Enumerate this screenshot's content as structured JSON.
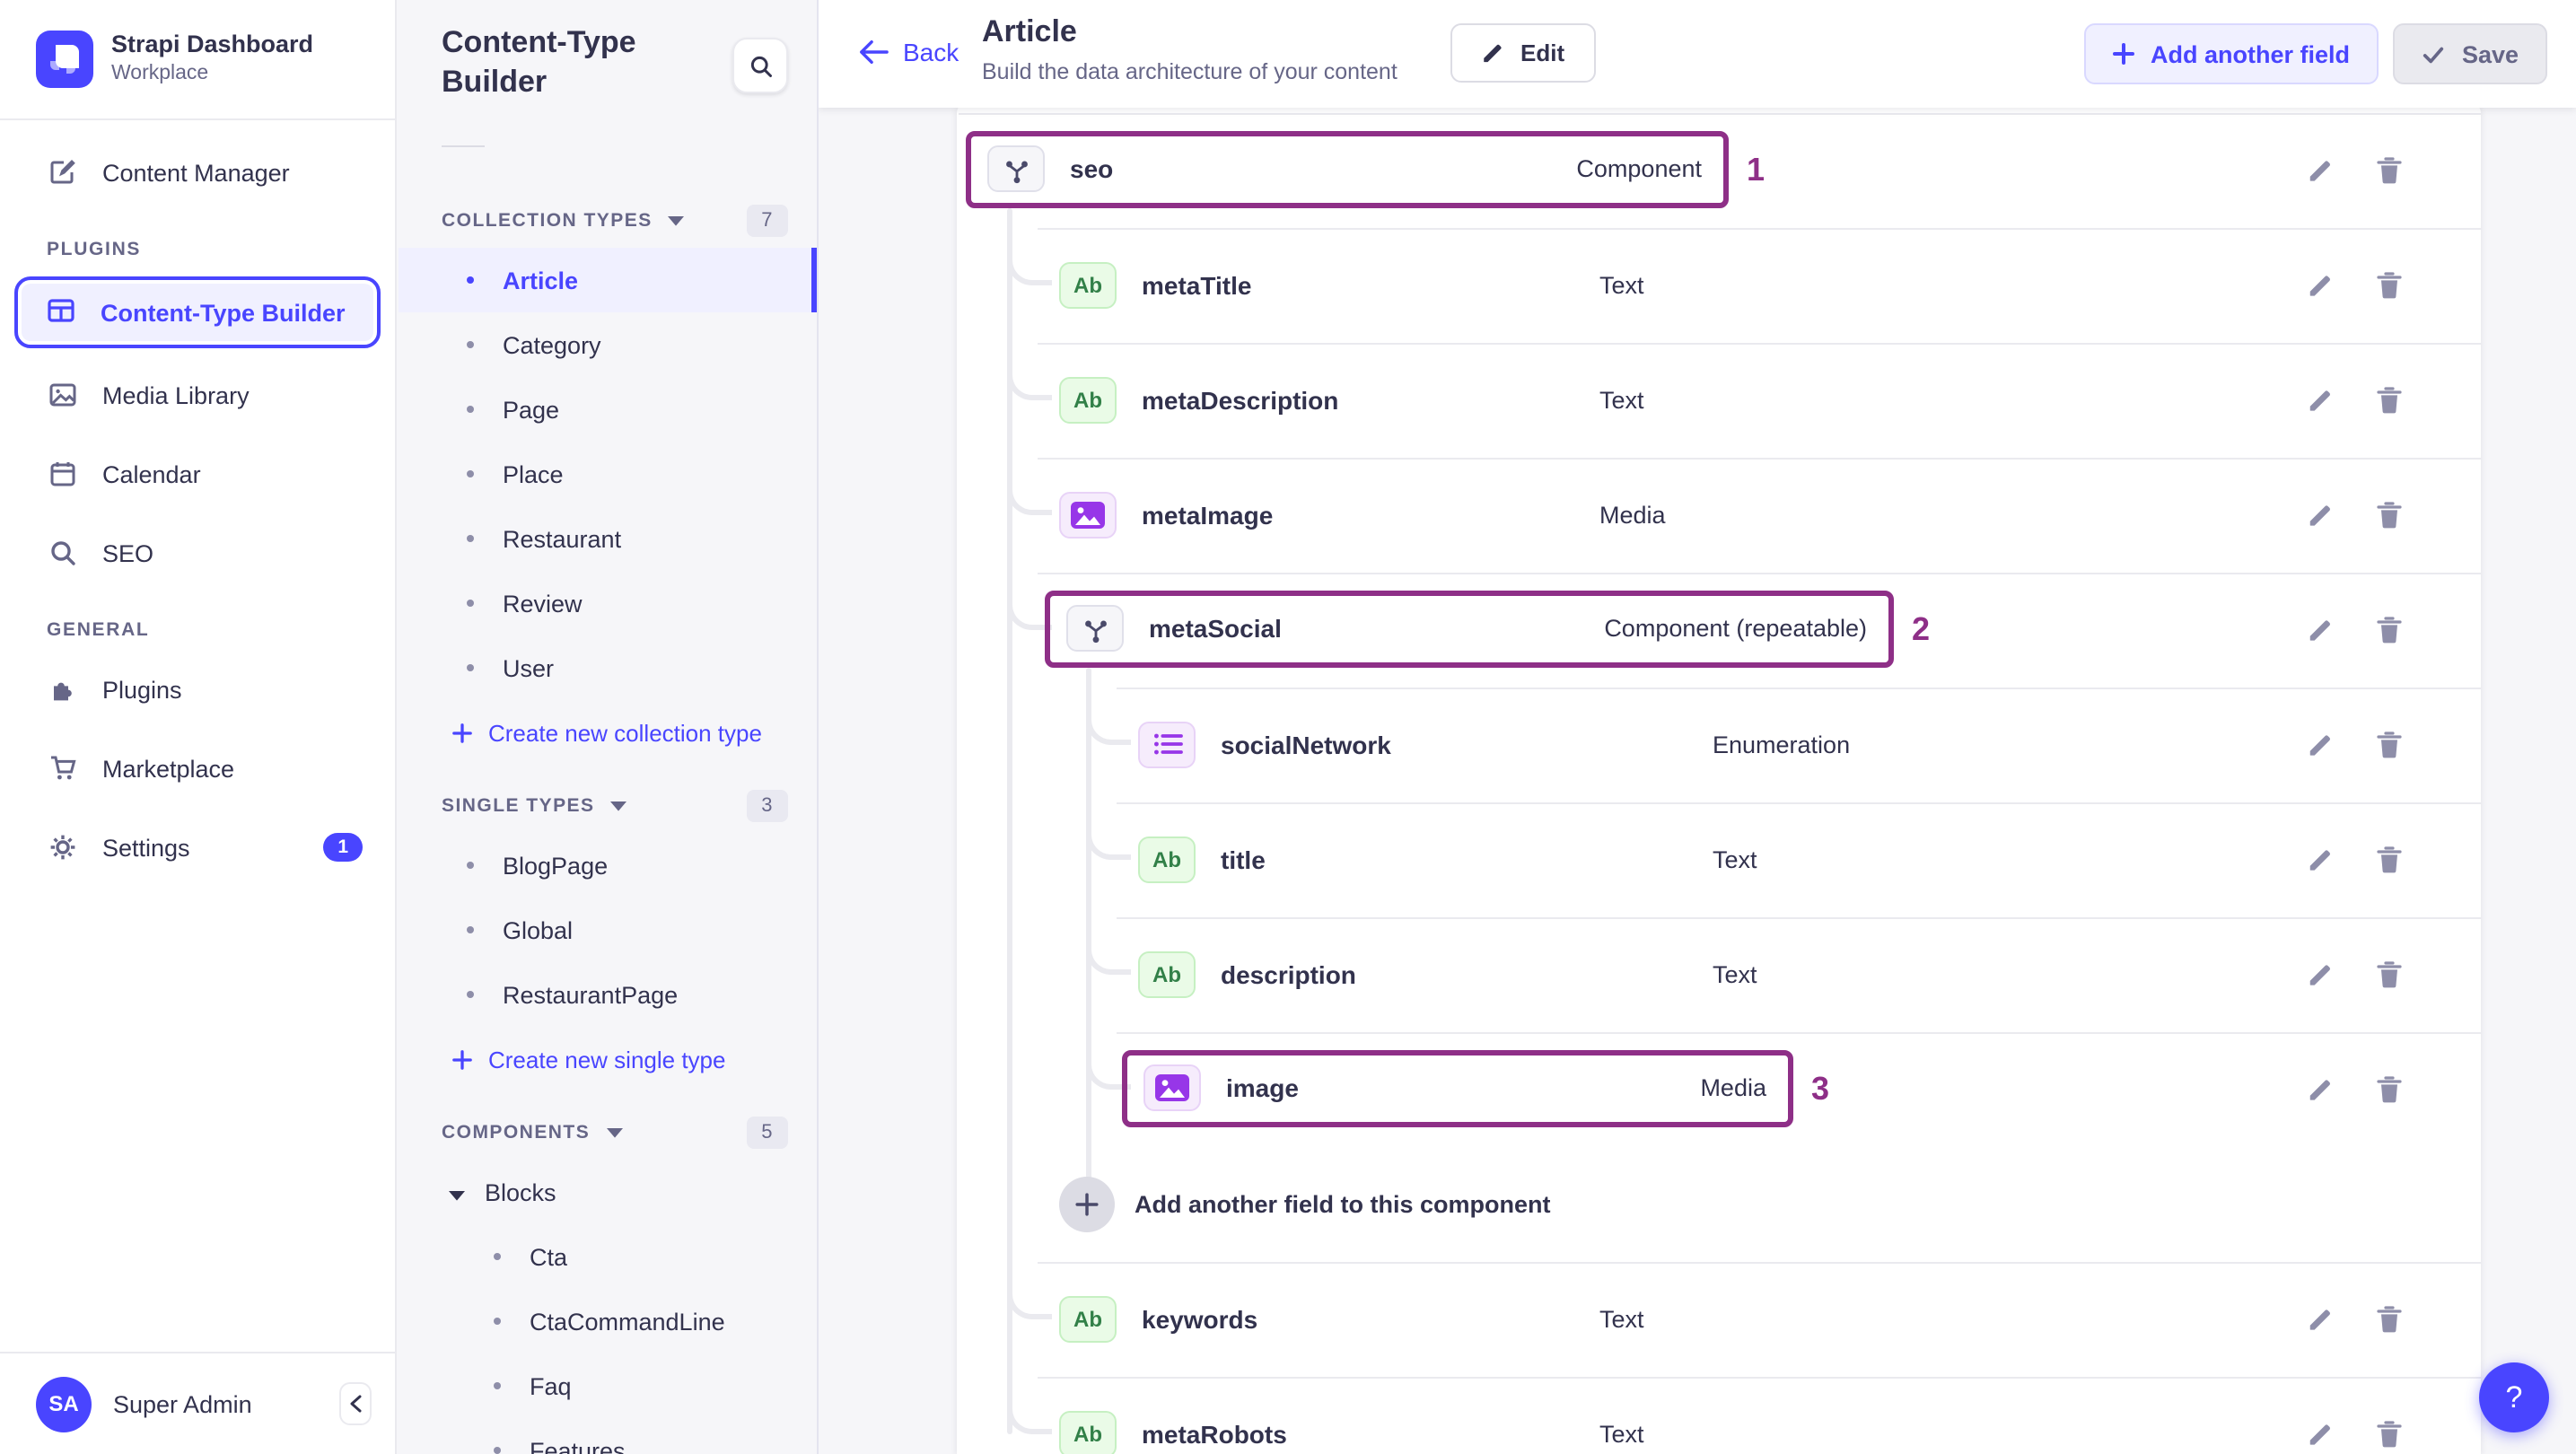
{
  "app": {
    "title": "Strapi Dashboard",
    "workspace": "Workplace",
    "user_initials": "SA",
    "user_name": "Super Admin",
    "help_label": "?"
  },
  "colors": {
    "primary": "#4945ff",
    "primary_bg": "#f0f0ff",
    "annotation": "#8e2f87",
    "text": "#32324d",
    "muted": "#666687",
    "divider": "#eaeaef",
    "page_bg": "#f6f6f9",
    "text_icon_green": "#328048",
    "purple_icon": "#9736e8"
  },
  "nav": {
    "top_items": [
      {
        "label": "Content Manager",
        "icon": "pen-icon",
        "active": false
      }
    ],
    "sections": [
      {
        "title": "PLUGINS",
        "items": [
          {
            "label": "Content-Type Builder",
            "icon": "layout-icon",
            "active": true
          },
          {
            "label": "Media Library",
            "icon": "picture-icon",
            "active": false
          },
          {
            "label": "Calendar",
            "icon": "calendar-icon",
            "active": false
          },
          {
            "label": "SEO",
            "icon": "search-icon",
            "active": false
          }
        ]
      },
      {
        "title": "GENERAL",
        "items": [
          {
            "label": "Plugins",
            "icon": "puzzle-icon",
            "active": false
          },
          {
            "label": "Marketplace",
            "icon": "cart-icon",
            "active": false
          },
          {
            "label": "Settings",
            "icon": "gear-icon",
            "active": false,
            "badge": "1"
          }
        ]
      }
    ]
  },
  "panel": {
    "title": "Content-Type Builder",
    "sections": [
      {
        "title": "COLLECTION TYPES",
        "count": "7",
        "items": [
          {
            "label": "Article",
            "active": true
          },
          {
            "label": "Category",
            "active": false
          },
          {
            "label": "Page",
            "active": false
          },
          {
            "label": "Place",
            "active": false
          },
          {
            "label": "Restaurant",
            "active": false
          },
          {
            "label": "Review",
            "active": false
          },
          {
            "label": "User",
            "active": false
          }
        ],
        "action": "Create new collection type"
      },
      {
        "title": "SINGLE TYPES",
        "count": "3",
        "items": [
          {
            "label": "BlogPage",
            "active": false
          },
          {
            "label": "Global",
            "active": false
          },
          {
            "label": "RestaurantPage",
            "active": false
          }
        ],
        "action": "Create new single type"
      },
      {
        "title": "COMPONENTS",
        "count": "5",
        "groups": [
          {
            "label": "Blocks",
            "expanded": true,
            "items": [
              {
                "label": "Cta"
              },
              {
                "label": "CtaCommandLine"
              },
              {
                "label": "Faq"
              },
              {
                "label": "Features"
              }
            ]
          }
        ]
      }
    ]
  },
  "header": {
    "back_label": "Back",
    "title": "Article",
    "subtitle": "Build the data architecture of your content",
    "edit_label": "Edit",
    "add_field_label": "Add another field",
    "save_label": "Save"
  },
  "fields": {
    "rows": [
      {
        "kind": "field",
        "name": "seo",
        "type": "Component",
        "icon": "component-icon",
        "level": 0,
        "annotation": "1",
        "divider_above": true
      },
      {
        "kind": "field",
        "name": "metaTitle",
        "type": "Text",
        "icon": "text-icon",
        "level": 1,
        "divider_above": true
      },
      {
        "kind": "field",
        "name": "metaDescription",
        "type": "Text",
        "icon": "text-icon",
        "level": 1,
        "divider_above": true
      },
      {
        "kind": "field",
        "name": "metaImage",
        "type": "Media",
        "icon": "media-icon",
        "level": 1,
        "divider_above": true
      },
      {
        "kind": "field",
        "name": "metaSocial",
        "type": "Component (repeatable)",
        "icon": "component-icon",
        "level": 1,
        "annotation": "2",
        "divider_above": true
      },
      {
        "kind": "field",
        "name": "socialNetwork",
        "type": "Enumeration",
        "icon": "enum-icon",
        "level": 2,
        "divider_above": true
      },
      {
        "kind": "field",
        "name": "title",
        "type": "Text",
        "icon": "text-icon",
        "level": 2,
        "divider_above": true
      },
      {
        "kind": "field",
        "name": "description",
        "type": "Text",
        "icon": "text-icon",
        "level": 2,
        "divider_above": true
      },
      {
        "kind": "field",
        "name": "image",
        "type": "Media",
        "icon": "media-icon",
        "level": 2,
        "annotation": "3",
        "divider_above": true
      },
      {
        "kind": "add",
        "label": "Add another field to this component",
        "level": 2,
        "divider_above": false
      },
      {
        "kind": "field",
        "name": "keywords",
        "type": "Text",
        "icon": "text-icon",
        "level": 1,
        "divider_above": true
      },
      {
        "kind": "field",
        "name": "metaRobots",
        "type": "Text",
        "icon": "text-icon",
        "level": 1,
        "divider_above": true
      }
    ]
  }
}
